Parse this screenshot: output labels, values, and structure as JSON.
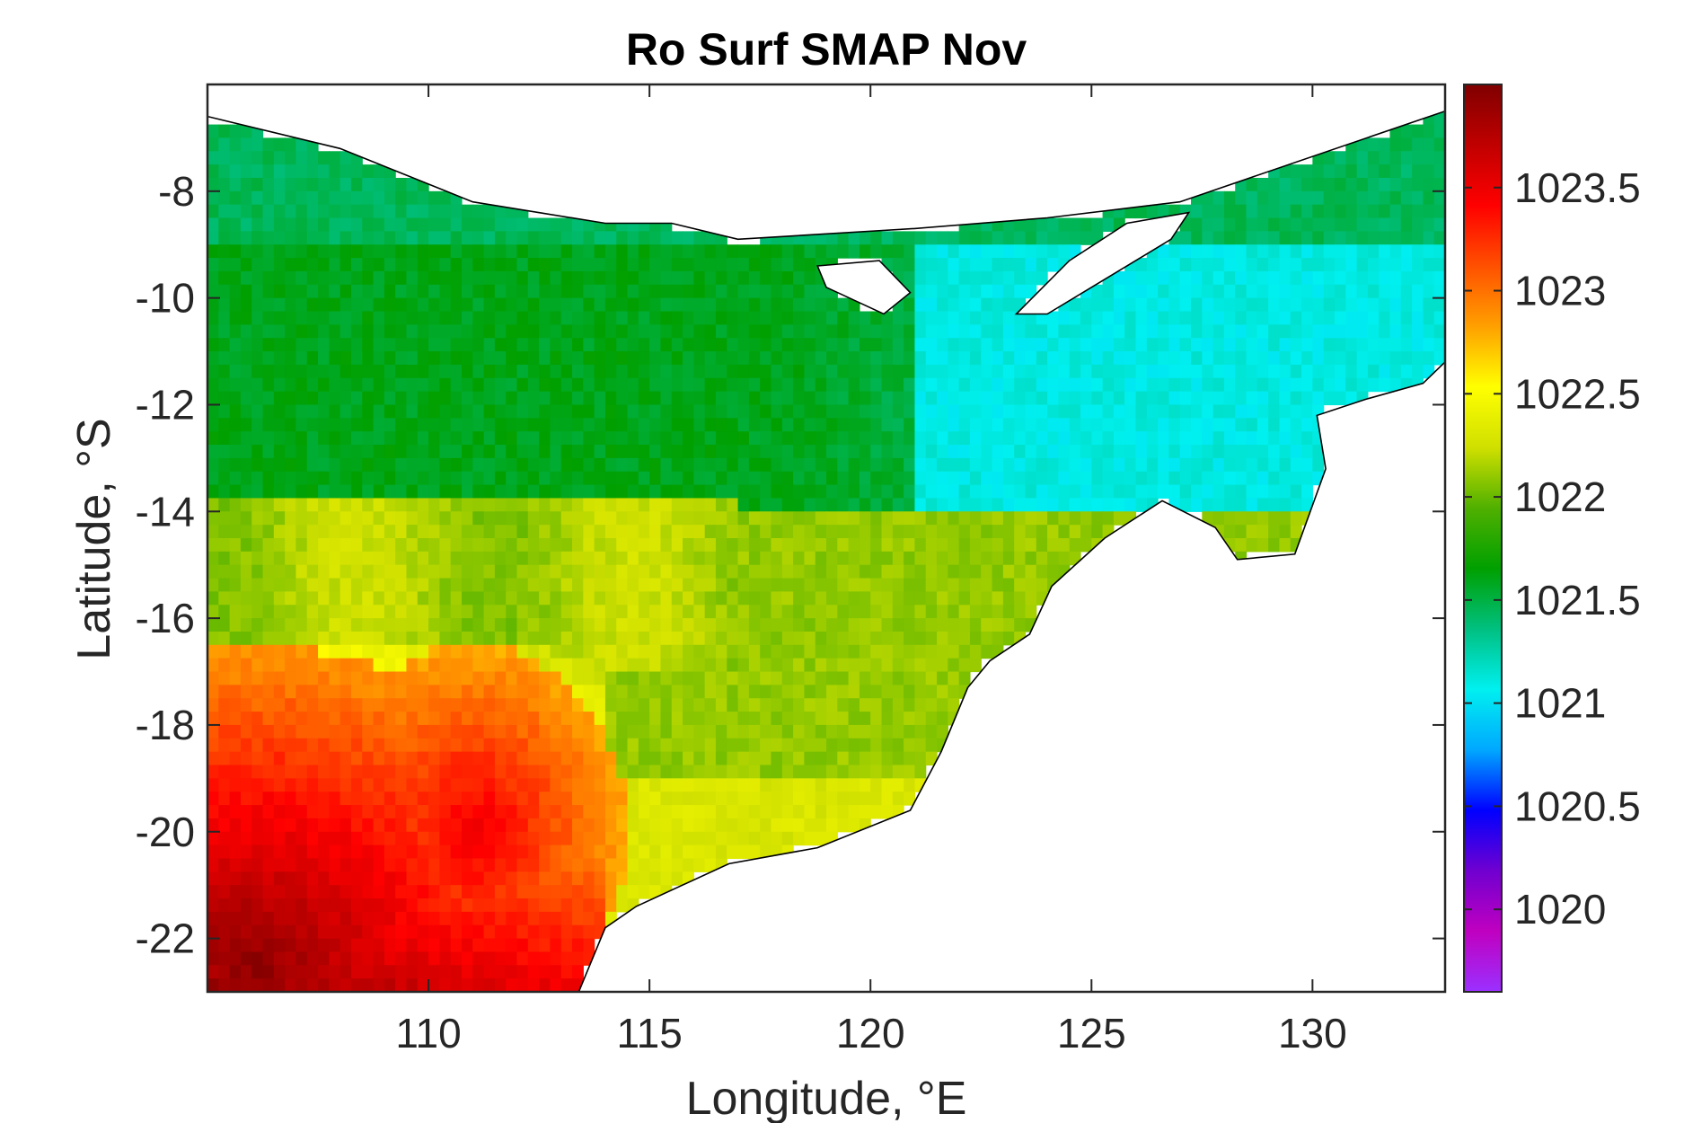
{
  "chart_data": {
    "type": "heatmap",
    "title": "Ro Surf SMAP Nov",
    "xlabel": "Longitude, °E",
    "ylabel": "Latitude, °S",
    "xlim": [
      105.0,
      133.0
    ],
    "ylim": [
      -23.0,
      -6.0
    ],
    "x_ticks": [
      110,
      115,
      120,
      125,
      130
    ],
    "x_tick_labels": [
      "110",
      "115",
      "120",
      "125",
      "130"
    ],
    "y_ticks": [
      -8,
      -10,
      -12,
      -14,
      -16,
      -18,
      -20,
      -22
    ],
    "y_tick_labels": [
      "-8",
      "-10",
      "-12",
      "-14",
      "-16",
      "-18",
      "-20",
      "-22"
    ],
    "colorbar": {
      "clim": [
        1019.6,
        1024.0
      ],
      "ticks": [
        1023.5,
        1023,
        1022.5,
        1022,
        1021.5,
        1021,
        1020.5,
        1020
      ],
      "tick_labels": [
        "1023.5",
        "1023",
        "1022.5",
        "1022",
        "1021.5",
        "1021",
        "1020.5",
        "1020"
      ],
      "colormap_stops": [
        "#9b30ff",
        "#c000c0",
        "#7000d0",
        "#0000ff",
        "#00a8ff",
        "#00f0f0",
        "#00c080",
        "#00a000",
        "#50b000",
        "#d0e000",
        "#ffff00",
        "#ffa000",
        "#ff5000",
        "#ff0000",
        "#c00000",
        "#800000"
      ]
    },
    "grid": false,
    "description": "Gridded surface density (kg/m^3) over Indonesian seas and north-west Australian shelf, land masked white with black coastlines",
    "field_summary": [
      {
        "region": "south-west corner (105-110E, 19-23S)",
        "value_range": [
          1023.4,
          1024.0
        ]
      },
      {
        "region": "south-central (109-113E, 17-21S)",
        "value_range": [
          1022.8,
          1023.4
        ]
      },
      {
        "region": "central band (105-121E, 14-19S)",
        "value_range": [
          1021.9,
          1022.4
        ]
      },
      {
        "region": "west/central (105-122E, 9-14S)",
        "value_range": [
          1021.4,
          1021.8
        ]
      },
      {
        "region": "north-east Timor/Arafura (122-133E, 9-14S)",
        "value_range": [
          1020.9,
          1021.3
        ]
      },
      {
        "region": "northern seas (112-133E, 6-9S)",
        "value_range": [
          1021.2,
          1021.6
        ]
      }
    ]
  }
}
